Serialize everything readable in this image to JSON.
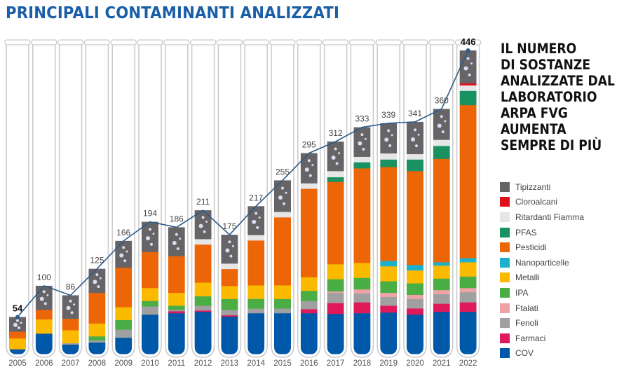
{
  "title": "PRINCIPALI CONTAMINANTI ANALIZZATI",
  "side_text": [
    "IL NUMERO",
    "DI SOSTANZE",
    "ANALIZZATE DAL",
    "LABORATORIO",
    "ARPA FVG",
    "AUMENTA",
    "SEMPRE DI PIÙ"
  ],
  "chart_data": {
    "type": "bar",
    "stacked": true,
    "overlay": "line of totals",
    "categories": [
      "2005",
      "2006",
      "2007",
      "2008",
      "2009",
      "2010",
      "2011",
      "2012",
      "2013",
      "2014",
      "2015",
      "2016",
      "2017",
      "2018",
      "2019",
      "2020",
      "2021",
      "2022"
    ],
    "totals": [
      54,
      100,
      86,
      125,
      166,
      194,
      186,
      211,
      175,
      217,
      255,
      295,
      312,
      333,
      339,
      341,
      360,
      446
    ],
    "legend_position": "right",
    "series": [
      {
        "name": "COV",
        "color": "#0058a8",
        "values": [
          7,
          30,
          14,
          17,
          24,
          58,
          60,
          62,
          55,
          60,
          60,
          60,
          59,
          60,
          61,
          58,
          62,
          62
        ]
      },
      {
        "name": "Farmaci",
        "color": "#e0195a",
        "values": [
          0,
          0,
          0,
          0,
          0,
          0,
          3,
          2,
          2,
          0,
          0,
          6,
          16,
          16,
          10,
          9,
          12,
          14
        ]
      },
      {
        "name": "Fenoli",
        "color": "#a0a0a0",
        "values": [
          0,
          0,
          2,
          3,
          12,
          12,
          2,
          7,
          8,
          7,
          7,
          12,
          15,
          13,
          13,
          14,
          14,
          15
        ]
      },
      {
        "name": "Ftalati",
        "color": "#efa3a8",
        "values": [
          0,
          0,
          0,
          0,
          0,
          0,
          0,
          0,
          0,
          0,
          0,
          0,
          2,
          6,
          6,
          6,
          6,
          6
        ]
      },
      {
        "name": "IPA",
        "color": "#4bae45",
        "values": [
          0,
          0,
          0,
          6,
          14,
          8,
          6,
          14,
          16,
          14,
          14,
          15,
          18,
          17,
          17,
          17,
          17,
          17
        ]
      },
      {
        "name": "Metalli",
        "color": "#fbb900",
        "values": [
          16,
          21,
          19,
          19,
          19,
          19,
          19,
          20,
          19,
          20,
          20,
          20,
          22,
          22,
          22,
          19,
          19,
          21
        ]
      },
      {
        "name": "Nanoparticelle",
        "color": "#1bb0cc",
        "values": [
          0,
          0,
          0,
          0,
          0,
          0,
          0,
          0,
          0,
          0,
          0,
          0,
          0,
          0,
          8,
          8,
          5,
          6
        ]
      },
      {
        "name": "Pesticidi",
        "color": "#ec6608",
        "values": [
          10,
          14,
          17,
          45,
          58,
          53,
          54,
          56,
          25,
          66,
          100,
          130,
          121,
          139,
          138,
          138,
          152,
          225
        ]
      },
      {
        "name": "PFAS",
        "color": "#1a9160",
        "values": [
          0,
          0,
          0,
          0,
          0,
          0,
          0,
          0,
          0,
          0,
          0,
          0,
          7,
          9,
          11,
          17,
          19,
          21
        ]
      },
      {
        "name": "Ritardanti Fiamma",
        "color": "#e6e6e6",
        "values": [
          0,
          0,
          0,
          0,
          0,
          0,
          0,
          8,
          8,
          8,
          8,
          8,
          9,
          8,
          9,
          8,
          9,
          8
        ]
      },
      {
        "name": "Cloroalcani",
        "color": "#e0101a",
        "values": [
          0,
          0,
          0,
          0,
          0,
          0,
          0,
          0,
          0,
          0,
          0,
          0,
          0,
          0,
          0,
          0,
          0,
          3
        ]
      },
      {
        "name": "Tipizzanti",
        "color": "#666466",
        "values": [
          21,
          35,
          34,
          35,
          39,
          44,
          42,
          42,
          42,
          42,
          46,
          44,
          43,
          43,
          44,
          47,
          45,
          48
        ]
      }
    ],
    "legend_order": [
      "Tipizzanti",
      "Cloroalcani",
      "Ritardanti Fiamma",
      "PFAS",
      "Pesticidi",
      "Nanoparticelle",
      "Metalli",
      "IPA",
      "Ftalati",
      "Fenoli",
      "Farmaci",
      "COV"
    ],
    "line_color": "#2e5b8a",
    "ylim": [
      0,
      446
    ]
  }
}
